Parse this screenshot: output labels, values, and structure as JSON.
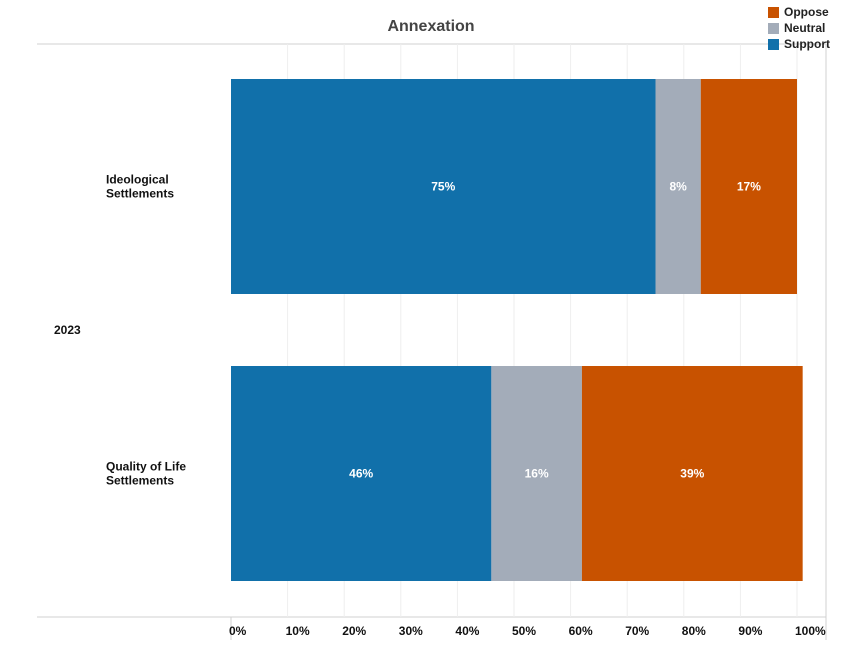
{
  "chart_data": {
    "type": "bar",
    "orientation": "horizontal",
    "stacked": true,
    "title": "Annexation",
    "year": "2023",
    "categories": [
      [
        "Ideological",
        "Settlements"
      ],
      [
        "Quality of Life",
        "Settlements"
      ]
    ],
    "series": [
      {
        "name": "Support",
        "color": "#1170aa",
        "values": [
          75,
          46
        ]
      },
      {
        "name": "Neutral",
        "color": "#a3acb9",
        "values": [
          8,
          16
        ]
      },
      {
        "name": "Oppose",
        "color": "#c85200",
        "values": [
          17,
          39
        ]
      }
    ],
    "data_labels": [
      [
        "75%",
        "8%",
        "17%"
      ],
      [
        "46%",
        "16%",
        "39%"
      ]
    ],
    "xlim": [
      0,
      100
    ],
    "x_ticks": [
      "0%",
      "10%",
      "20%",
      "30%",
      "40%",
      "50%",
      "60%",
      "70%",
      "80%",
      "90%",
      "100%"
    ],
    "grid": true,
    "legend_position": "top-right",
    "legend_order": [
      "Oppose",
      "Neutral",
      "Support"
    ]
  }
}
